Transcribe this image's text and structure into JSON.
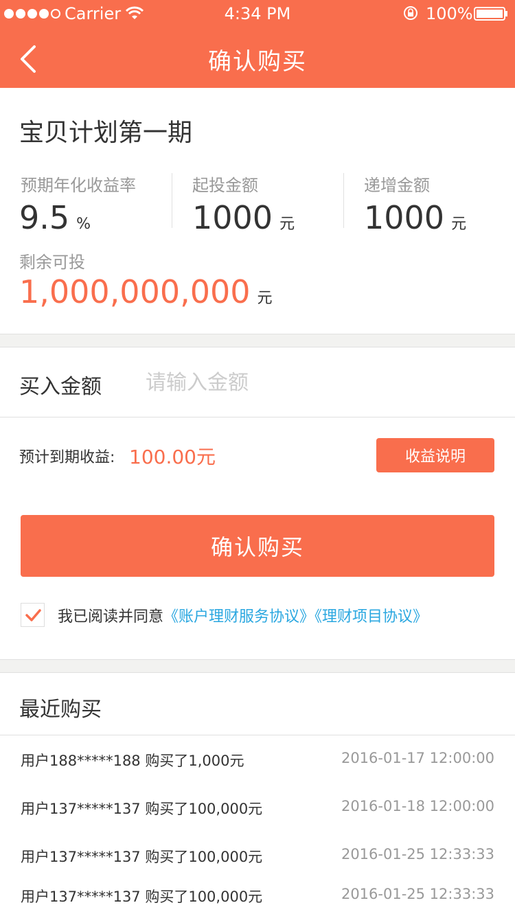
{
  "status_bar": {
    "carrier": "Carrier",
    "time": "4:34 PM",
    "battery": "100%"
  },
  "nav": {
    "title": "确认购买"
  },
  "product": {
    "title": "宝贝计划第一期",
    "stats": [
      {
        "label": "预期年化收益率",
        "value": "9.5",
        "unit": "%"
      },
      {
        "label": "起投金额",
        "value": "1000",
        "unit": "元"
      },
      {
        "label": "递增金额",
        "value": "1000",
        "unit": "元"
      }
    ],
    "remaining_label": "剩余可投",
    "remaining_value": "1,000,000,000",
    "remaining_unit": "元"
  },
  "purchase": {
    "amount_label": "买入金额",
    "amount_placeholder": "请输入金额",
    "expected_label": "预计到期收益:",
    "expected_value": "100.00元",
    "explain_button": "收益说明",
    "confirm_button": "确认购买"
  },
  "agreement": {
    "prefix": "我已阅读并同意",
    "links": [
      "《账户理财服务协议》",
      "《理财项目协议》"
    ],
    "checked": true
  },
  "recent": {
    "title": "最近购买",
    "rows": [
      {
        "user": "用户188*****188 购买了1,000元",
        "time": "2016-01-17 12:00:00"
      },
      {
        "user": "用户137*****137 购买了100,000元",
        "time": "2016-01-18 12:00:00"
      },
      {
        "user": "用户137*****137 购买了100,000元",
        "time": "2016-01-25 12:33:33"
      },
      {
        "user": "用户137*****137 购买了100,000元",
        "time": "2016-01-25 12:33:33"
      }
    ]
  },
  "colors": {
    "accent": "#f96e4d",
    "link": "#2aa7e0",
    "divider": "#e0e0e0",
    "gap_bg": "#f2f2f0",
    "page_bg": "#ffffff"
  }
}
